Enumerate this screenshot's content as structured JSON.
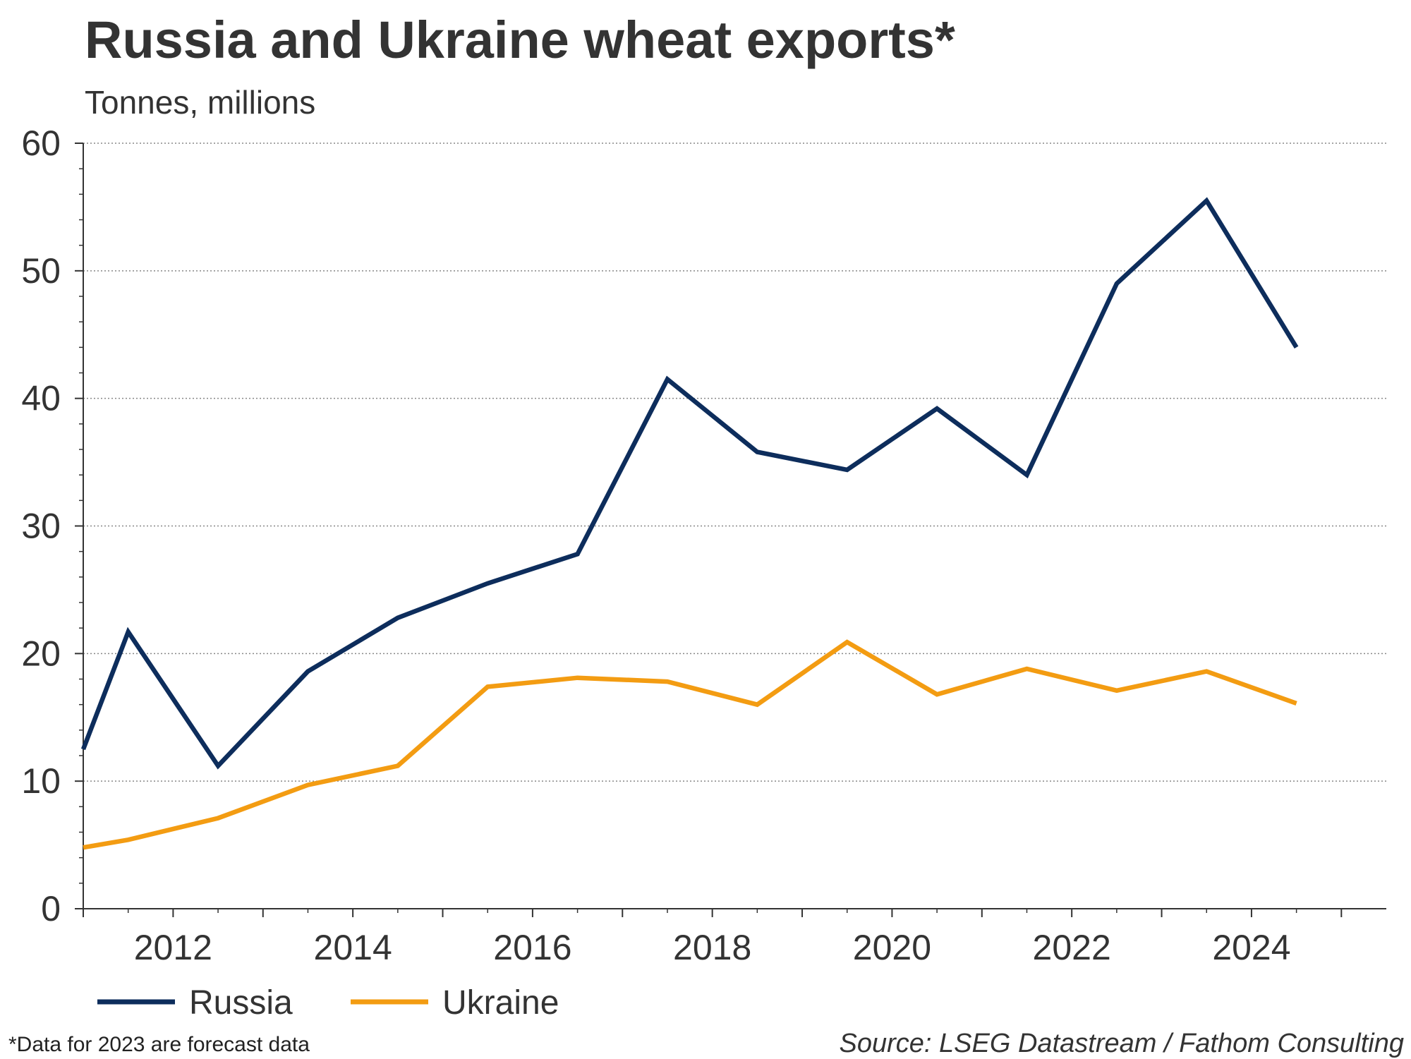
{
  "title": "Russia and Ukraine wheat exports*",
  "subtitle": "Tonnes, millions",
  "footnote": "*Data for 2023 are forecast data",
  "source": "Source: LSEG Datastream / Fathom Consulting",
  "colors": {
    "Russia": "#0d2d5c",
    "Ukraine": "#f39c12",
    "axis": "#333333",
    "grid": "#888888"
  },
  "chart_data": {
    "type": "line",
    "x": [
      2011,
      2011.5,
      2012.5,
      2013.5,
      2014.5,
      2015.5,
      2016.5,
      2017.5,
      2018.5,
      2019.5,
      2020.5,
      2021.5,
      2022.5,
      2023.5,
      2024.5
    ],
    "series": [
      {
        "name": "Russia",
        "values": [
          12.5,
          21.7,
          11.2,
          18.6,
          22.8,
          25.5,
          27.8,
          41.5,
          35.8,
          34.4,
          39.2,
          34.0,
          49.0,
          55.5,
          44.0
        ]
      },
      {
        "name": "Ukraine",
        "values": [
          4.8,
          5.4,
          7.1,
          9.7,
          11.2,
          17.4,
          18.1,
          17.8,
          16.0,
          20.9,
          16.8,
          18.8,
          17.1,
          18.6,
          16.1
        ]
      }
    ],
    "xlim": [
      2011,
      2025.5
    ],
    "xticks": [
      2012,
      2014,
      2016,
      2018,
      2020,
      2022,
      2024
    ],
    "ylim": [
      0,
      60
    ],
    "yticks": [
      0,
      10,
      20,
      30,
      40,
      50,
      60
    ],
    "grid": true,
    "legend_position": "bottom-left"
  }
}
